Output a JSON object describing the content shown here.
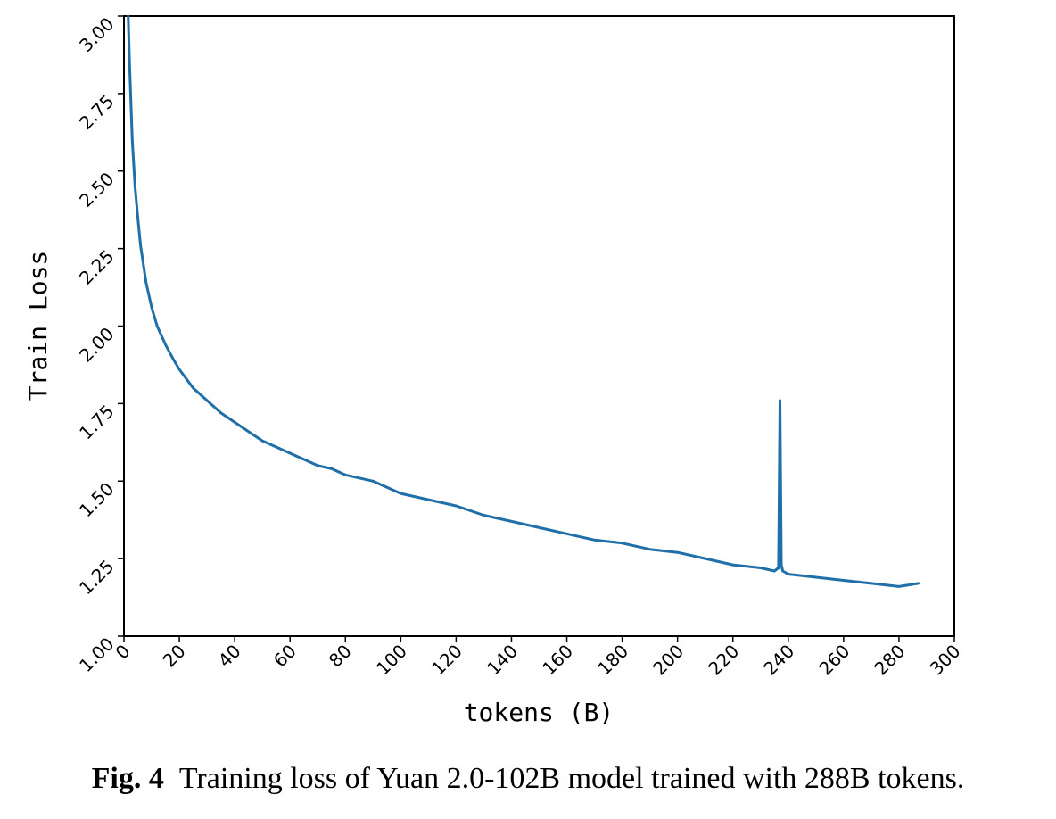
{
  "chart_data": {
    "type": "line",
    "title": "",
    "xlabel": "tokens (B)",
    "ylabel": "Train Loss",
    "xlim": [
      0,
      300
    ],
    "ylim": [
      1.0,
      3.0
    ],
    "x_ticks": [
      "0",
      "20",
      "40",
      "60",
      "80",
      "100",
      "120",
      "140",
      "160",
      "180",
      "200",
      "220",
      "240",
      "260",
      "280",
      "300"
    ],
    "y_ticks": [
      "1.00",
      "1.25",
      "1.50",
      "1.75",
      "2.00",
      "2.25",
      "2.50",
      "2.75",
      "3.00"
    ],
    "grid": false,
    "line_color": "#1f6fa8",
    "series": [
      {
        "x": [
          1.5,
          2,
          3,
          4,
          5,
          6,
          7,
          8,
          10,
          12,
          15,
          18,
          20,
          25,
          30,
          35,
          40,
          45,
          50,
          55,
          60,
          65,
          70,
          75,
          80,
          85,
          90,
          95,
          100,
          110,
          120,
          130,
          140,
          150,
          160,
          170,
          180,
          190,
          200,
          210,
          220,
          230,
          235,
          236.5,
          237,
          237.5,
          238,
          240,
          250,
          260,
          270,
          280,
          287
        ],
        "y": [
          3.0,
          2.85,
          2.6,
          2.45,
          2.35,
          2.26,
          2.2,
          2.14,
          2.06,
          2.0,
          1.94,
          1.89,
          1.86,
          1.8,
          1.76,
          1.72,
          1.69,
          1.66,
          1.63,
          1.61,
          1.59,
          1.57,
          1.55,
          1.54,
          1.52,
          1.51,
          1.5,
          1.48,
          1.46,
          1.44,
          1.42,
          1.39,
          1.37,
          1.35,
          1.33,
          1.31,
          1.3,
          1.28,
          1.27,
          1.25,
          1.23,
          1.22,
          1.21,
          1.22,
          1.76,
          1.23,
          1.21,
          1.2,
          1.19,
          1.18,
          1.17,
          1.16,
          1.17
        ]
      }
    ]
  },
  "caption": {
    "label": "Fig. 4",
    "text": "Training loss of Yuan 2.0-102B model trained with 288B tokens."
  }
}
